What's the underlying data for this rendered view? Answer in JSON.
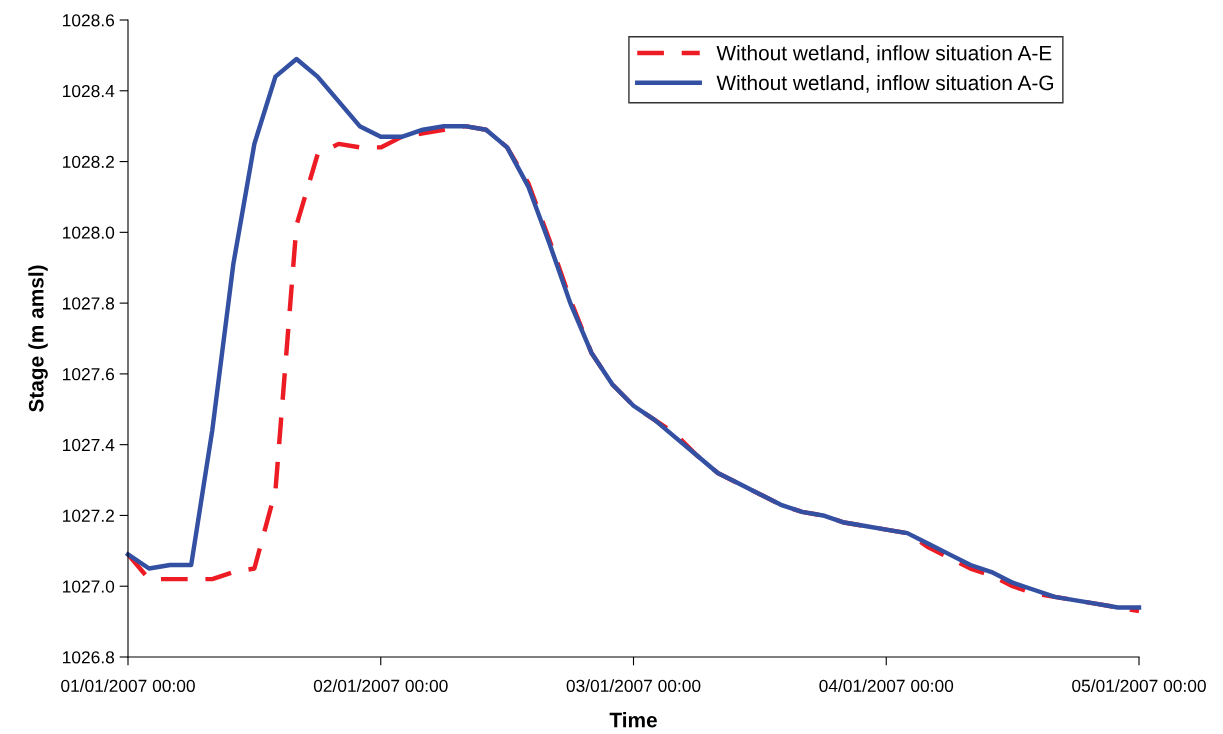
{
  "chart_data": {
    "type": "line",
    "xlabel": "Time",
    "ylabel": "Stage (m amsl)",
    "x": [
      "2007-01-01T00:00",
      "2007-01-01T02:00",
      "2007-01-01T04:00",
      "2007-01-01T06:00",
      "2007-01-01T08:00",
      "2007-01-01T10:00",
      "2007-01-01T12:00",
      "2007-01-01T14:00",
      "2007-01-01T16:00",
      "2007-01-01T18:00",
      "2007-01-01T20:00",
      "2007-01-01T22:00",
      "2007-01-02T00:00",
      "2007-01-02T02:00",
      "2007-01-02T04:00",
      "2007-01-02T06:00",
      "2007-01-02T08:00",
      "2007-01-02T10:00",
      "2007-01-02T12:00",
      "2007-01-02T14:00",
      "2007-01-02T16:00",
      "2007-01-02T18:00",
      "2007-01-02T20:00",
      "2007-01-02T22:00",
      "2007-01-03T00:00",
      "2007-01-03T02:00",
      "2007-01-03T04:00",
      "2007-01-03T06:00",
      "2007-01-03T08:00",
      "2007-01-03T10:00",
      "2007-01-03T12:00",
      "2007-01-03T14:00",
      "2007-01-03T16:00",
      "2007-01-03T18:00",
      "2007-01-03T20:00",
      "2007-01-03T22:00",
      "2007-01-04T00:00",
      "2007-01-04T02:00",
      "2007-01-04T04:00",
      "2007-01-04T06:00",
      "2007-01-04T08:00",
      "2007-01-04T10:00",
      "2007-01-04T12:00",
      "2007-01-04T14:00",
      "2007-01-04T16:00",
      "2007-01-04T18:00",
      "2007-01-04T20:00",
      "2007-01-04T22:00",
      "2007-01-05T00:00"
    ],
    "xlim": [
      "2007-01-01T00:00",
      "2007-01-05T00:00"
    ],
    "xticks": [
      {
        "value": "2007-01-01T00:00",
        "label": "01/01/2007 00:00"
      },
      {
        "value": "2007-01-02T00:00",
        "label": "02/01/2007 00:00"
      },
      {
        "value": "2007-01-03T00:00",
        "label": "03/01/2007 00:00"
      },
      {
        "value": "2007-01-04T00:00",
        "label": "04/01/2007 00:00"
      },
      {
        "value": "2007-01-05T00:00",
        "label": "05/01/2007 00:00"
      }
    ],
    "ylim": [
      1026.8,
      1028.6
    ],
    "yticks": [
      {
        "value": 1026.8,
        "label": "1026.8"
      },
      {
        "value": 1027.0,
        "label": "1027.0"
      },
      {
        "value": 1027.2,
        "label": "1027.2"
      },
      {
        "value": 1027.4,
        "label": "1027.4"
      },
      {
        "value": 1027.6,
        "label": "1027.6"
      },
      {
        "value": 1027.8,
        "label": "1027.8"
      },
      {
        "value": 1028.0,
        "label": "1028.0"
      },
      {
        "value": 1028.2,
        "label": "1028.2"
      },
      {
        "value": 1028.4,
        "label": "1028.4"
      },
      {
        "value": 1028.6,
        "label": "1028.6"
      }
    ],
    "grid": false,
    "legend": "top right",
    "marker": "none",
    "series": [
      {
        "name": "Without wetland, inflow situation A-E",
        "color": "#ed1c24",
        "line_style": "dashed",
        "values": [
          1027.09,
          1027.02,
          1027.02,
          1027.02,
          1027.02,
          1027.04,
          1027.05,
          1027.27,
          1028.02,
          1028.22,
          1028.25,
          1028.24,
          1028.24,
          1028.27,
          1028.28,
          1028.29,
          1028.3,
          1028.29,
          1028.24,
          1028.14,
          1027.98,
          1027.81,
          1027.66,
          1027.57,
          1027.51,
          1027.47,
          1027.43,
          1027.37,
          1027.32,
          1027.29,
          1027.26,
          1027.23,
          1027.21,
          1027.2,
          1027.18,
          1027.17,
          1027.16,
          1027.15,
          1027.11,
          1027.08,
          1027.05,
          1027.03,
          1027.0,
          1026.98,
          1026.97,
          1026.96,
          1026.95,
          1026.94,
          1026.93
        ]
      },
      {
        "name": "Without wetland, inflow situation A-G",
        "color": "#3350a3",
        "line_style": "solid",
        "values": [
          1027.09,
          1027.05,
          1027.06,
          1027.06,
          1027.44,
          1027.91,
          1028.25,
          1028.44,
          1028.49,
          1028.44,
          1028.37,
          1028.3,
          1028.27,
          1028.27,
          1028.29,
          1028.3,
          1028.3,
          1028.29,
          1028.24,
          1028.13,
          1027.97,
          1027.8,
          1027.66,
          1027.57,
          1027.51,
          1027.47,
          1027.42,
          1027.37,
          1027.32,
          1027.29,
          1027.26,
          1027.23,
          1027.21,
          1027.2,
          1027.18,
          1027.17,
          1027.16,
          1027.15,
          1027.12,
          1027.09,
          1027.06,
          1027.04,
          1027.01,
          1026.99,
          1026.97,
          1026.96,
          1026.95,
          1026.94,
          1026.94
        ]
      }
    ]
  }
}
